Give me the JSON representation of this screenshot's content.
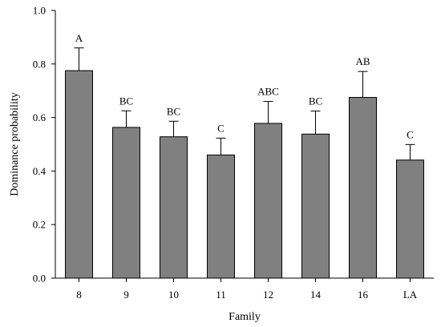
{
  "chart_data": {
    "type": "bar",
    "title": "",
    "xlabel": "Family",
    "ylabel": "Dominance probability",
    "categories": [
      "8",
      "9",
      "10",
      "11",
      "12",
      "14",
      "16",
      "LA"
    ],
    "values": [
      0.775,
      0.563,
      0.528,
      0.46,
      0.578,
      0.538,
      0.675,
      0.441
    ],
    "errors": [
      0.085,
      0.062,
      0.058,
      0.063,
      0.082,
      0.086,
      0.097,
      0.058
    ],
    "significance_letters": [
      "A",
      "BC",
      "BC",
      "C",
      "ABC",
      "BC",
      "AB",
      "C"
    ],
    "ylim": [
      0.0,
      1.0
    ],
    "yticks": [
      0.0,
      0.2,
      0.4,
      0.6,
      0.8,
      1.0
    ],
    "ytick_labels": [
      "0.0",
      "0.2",
      "0.4",
      "0.6",
      "0.8",
      "1.0"
    ],
    "grid": false,
    "legend": "none",
    "bar_color": "#808080",
    "bar_edge_color": "#000000"
  }
}
